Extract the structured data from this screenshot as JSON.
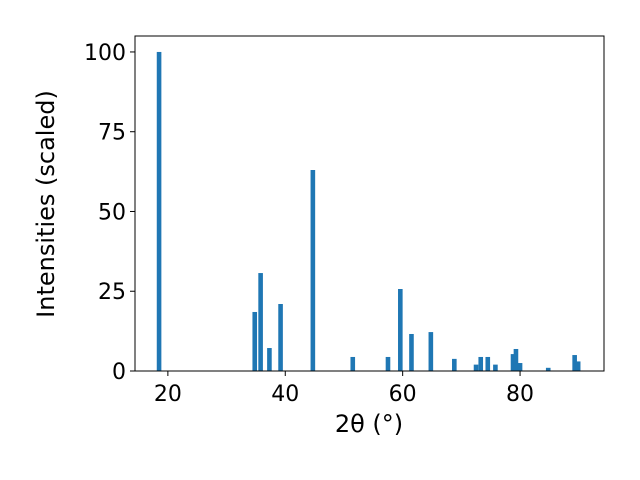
{
  "chart_data": {
    "type": "bar",
    "x_label": "2θ (°)",
    "y_label": "Intensities (scaled)",
    "x": [
      18.5,
      34.8,
      35.8,
      37.3,
      39.2,
      44.7,
      51.5,
      57.5,
      59.6,
      61.5,
      64.8,
      68.8,
      72.5,
      73.3,
      74.5,
      75.8,
      78.8,
      79.3,
      80.0,
      84.8,
      89.3,
      89.9
    ],
    "values": [
      100,
      18.5,
      30.7,
      7.2,
      21,
      63,
      4.4,
      4.4,
      25.7,
      11.6,
      12.2,
      3.8,
      2,
      4.4,
      4.4,
      2,
      5.3,
      6.9,
      2.5,
      1,
      5,
      3
    ],
    "color": "#1f77b4",
    "xlim": [
      14.4,
      94.3
    ],
    "xticks": [
      20,
      40,
      60,
      80
    ],
    "ylim": [
      0,
      105
    ],
    "yticks": [
      0,
      25,
      50,
      75,
      100
    ],
    "grid": false
  }
}
